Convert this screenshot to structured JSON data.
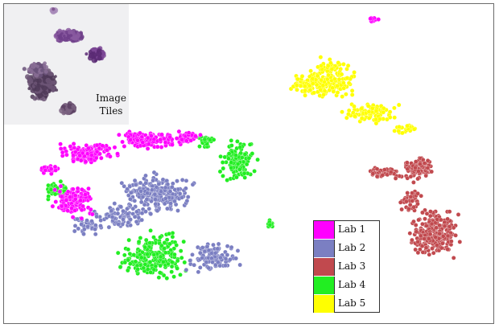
{
  "chart_data": {
    "type": "scatter",
    "title": "",
    "xlabel": "",
    "ylabel": "",
    "grid": false,
    "legend_placement": "bottom-center",
    "series": [
      {
        "name": "Lab 1",
        "color": "#ff00ff"
      },
      {
        "name": "Lab 2",
        "color": "#7b7fc2"
      },
      {
        "name": "Lab 3",
        "color": "#c1494e"
      },
      {
        "name": "Lab 4",
        "color": "#22ee22"
      },
      {
        "name": "Lab 5",
        "color": "#ffff00"
      }
    ]
  },
  "inset": {
    "label_line1": "Image",
    "label_line2": "Tiles"
  }
}
